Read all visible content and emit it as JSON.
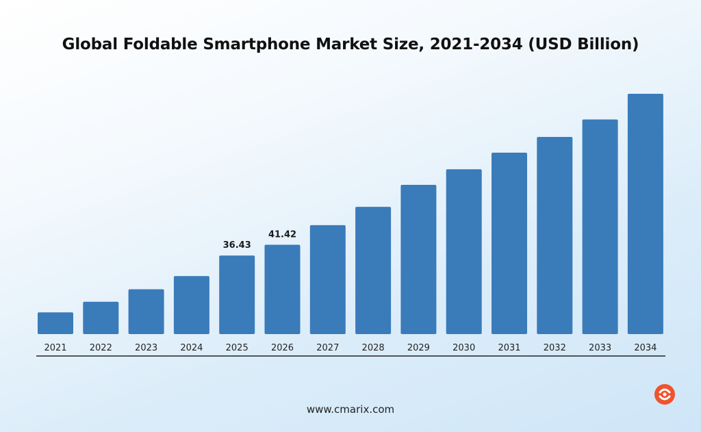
{
  "chart_data": {
    "type": "bar",
    "title": "Global Foldable Smartphone Market Size, 2021-2034 (USD Billion)",
    "categories": [
      "2021",
      "2022",
      "2023",
      "2024",
      "2025",
      "2026",
      "2027",
      "2028",
      "2029",
      "2030",
      "2031",
      "2032",
      "2033",
      "2034"
    ],
    "values": [
      10.1,
      15.0,
      20.8,
      26.9,
      36.43,
      41.42,
      50.5,
      59.0,
      69.2,
      76.4,
      84.1,
      91.4,
      99.5,
      111.4
    ],
    "data_labels": {
      "4": "36.43",
      "5": "41.42"
    },
    "ylim": [
      0,
      111.4
    ],
    "grid": false,
    "bar_color": "#3a7bba",
    "axis_color": "#222222"
  },
  "footer": {
    "website": "www.cmarix.com"
  },
  "brand": {
    "logo_icon": "cmarix-logo-icon",
    "logo_color": "#f0532d"
  }
}
